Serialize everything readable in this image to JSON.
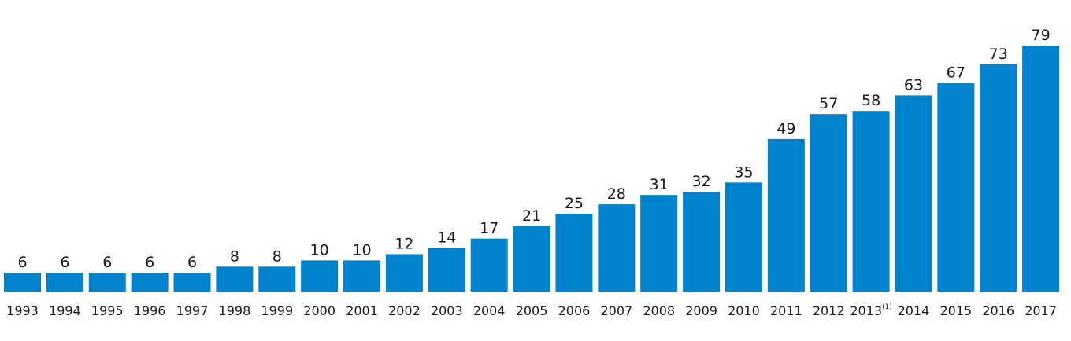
{
  "chart_data": {
    "type": "bar",
    "title": "",
    "xlabel": "",
    "ylabel": "",
    "categories": [
      "1993",
      "1994",
      "1995",
      "1996",
      "1997",
      "1998",
      "1999",
      "2000",
      "2001",
      "2002",
      "2003",
      "2004",
      "2005",
      "2006",
      "2007",
      "2008",
      "2009",
      "2010",
      "2011",
      "2012",
      "2013",
      "2014",
      "2015",
      "2016",
      "2017"
    ],
    "category_notes": {
      "2013": "(1)"
    },
    "values": [
      6,
      6,
      6,
      6,
      6,
      8,
      8,
      10,
      10,
      12,
      14,
      17,
      21,
      25,
      28,
      31,
      32,
      35,
      49,
      57,
      58,
      63,
      67,
      73,
      79
    ],
    "ylim": [
      0,
      80
    ],
    "grid": false,
    "legend": "none",
    "bar_color": "#0083cc",
    "text_color": "#1a1a1a"
  }
}
